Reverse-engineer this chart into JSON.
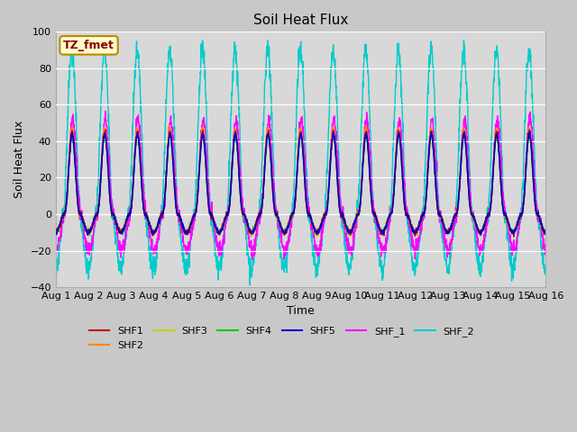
{
  "title": "Soil Heat Flux",
  "xlabel": "Time",
  "ylabel": "Soil Heat Flux",
  "xlim": [
    0,
    15
  ],
  "ylim": [
    -40,
    100
  ],
  "yticks": [
    -40,
    -20,
    0,
    20,
    40,
    60,
    80,
    100
  ],
  "xtick_labels": [
    "Aug 1",
    "Aug 2",
    "Aug 3",
    "Aug 4",
    "Aug 5",
    "Aug 6",
    "Aug 7",
    "Aug 8",
    "Aug 9",
    "Aug 10",
    "Aug 11",
    "Aug 12",
    "Aug 13",
    "Aug 14",
    "Aug 15",
    "Aug 16"
  ],
  "series_colors": {
    "SHF1": "#cc0000",
    "SHF2": "#ff8800",
    "SHF3": "#cccc00",
    "SHF4": "#00cc00",
    "SHF5": "#0000cc",
    "SHF_1": "#ff00ff",
    "SHF_2": "#00cccc"
  },
  "annotation_text": "TZ_fmet",
  "annotation_box_facecolor": "#ffffcc",
  "annotation_box_edgecolor": "#bb8800",
  "annotation_text_color": "#880000",
  "fig_facecolor": "#c8c8c8",
  "ax_facecolor": "#d8d8d8",
  "legend_ncol_row1": 6,
  "n_days": 15,
  "points_per_day": 144
}
